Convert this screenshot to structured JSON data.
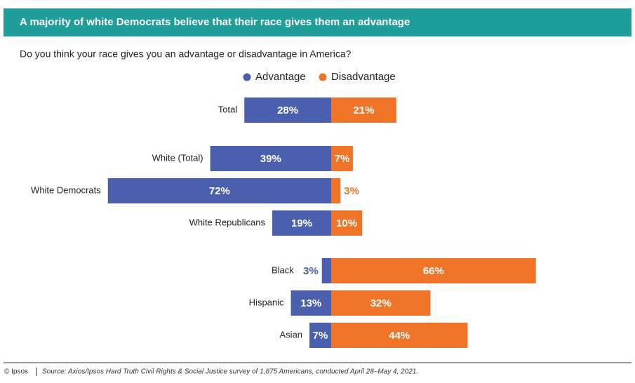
{
  "chart_data": {
    "type": "diverging_bar",
    "title": "A majority of white Democrats believe that their race gives them an advantage",
    "subtitle": "Do you think your race gives you an advantage or disadvantage in America?",
    "categories": [
      "Total",
      "White (Total)",
      "White Democrats",
      "White Republicans",
      "Black",
      "Hispanic",
      "Asian"
    ],
    "series": [
      {
        "name": "Advantage",
        "color": "#4a5fae",
        "values": [
          28,
          39,
          72,
          19,
          3,
          13,
          7
        ],
        "value_labels": [
          "28%",
          "39%",
          "72%",
          "19%",
          "3%",
          "13%",
          "7%"
        ]
      },
      {
        "name": "Disadvantage",
        "color": "#f07427",
        "values": [
          21,
          7,
          3,
          10,
          66,
          32,
          44
        ],
        "value_labels": [
          "21%",
          "7%",
          "3%",
          "10%",
          "66%",
          "32%",
          "44%"
        ]
      }
    ],
    "source_credit": "© Ipsos",
    "source": "Source: Axios/Ipsos Hard Truth Civil Rights & Social Justice survey of 1,875 Americans, conducted April 28–May 4, 2021."
  }
}
